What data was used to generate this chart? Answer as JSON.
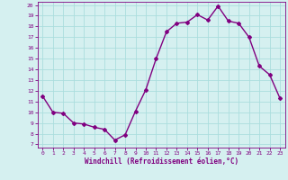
{
  "x": [
    0,
    1,
    2,
    3,
    4,
    5,
    6,
    7,
    8,
    9,
    10,
    11,
    12,
    13,
    14,
    15,
    16,
    17,
    18,
    19,
    20,
    21,
    22,
    23
  ],
  "y": [
    11.5,
    10.0,
    9.9,
    9.0,
    8.9,
    8.6,
    8.4,
    7.4,
    7.9,
    10.1,
    12.1,
    15.0,
    17.5,
    18.3,
    18.4,
    19.1,
    18.6,
    19.9,
    18.5,
    18.3,
    17.0,
    14.3,
    13.5,
    11.3
  ],
  "line_color": "#800080",
  "marker": "D",
  "marker_size": 2,
  "line_width": 1.0,
  "bg_color": "#d5f0f0",
  "grid_color": "#aadddd",
  "xlabel": "Windchill (Refroidissement éolien,°C)",
  "xlabel_color": "#800080",
  "tick_color": "#800080",
  "ytick_min": 7,
  "ytick_max": 20,
  "xtick_min": 0,
  "xtick_max": 23
}
